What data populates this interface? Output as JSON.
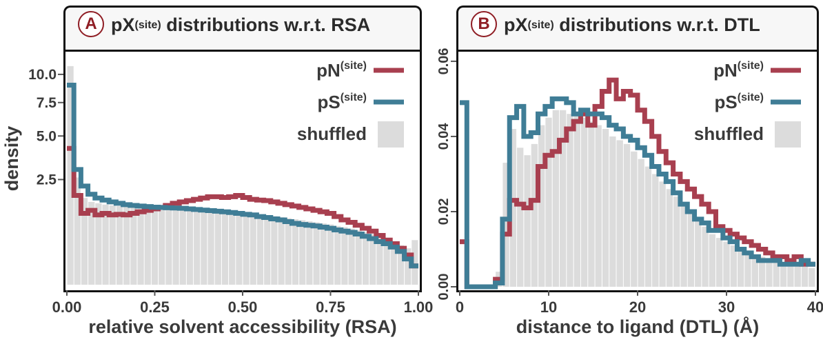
{
  "chart_data": [
    {
      "type": "bar",
      "panel_letter": "A",
      "title_prefix": "pX",
      "title_sup": "(site)",
      "title_suffix": " distributions w.r.t. RSA",
      "xlabel": "relative solvent accessibility (RSA)",
      "ylabel": "density",
      "xlim": [
        0,
        1
      ],
      "yticks": [
        "10.0",
        "7.5",
        "5.0",
        "2.5"
      ],
      "xticks": [
        "0.00",
        "0.25",
        "0.50",
        "0.75",
        "1.00"
      ],
      "legend": [
        {
          "label": "pN",
          "sup": "(site)",
          "color": "#a83f4f"
        },
        {
          "label": "pS",
          "sup": "(site)",
          "color": "#3f7d96"
        },
        {
          "label": "shuffled",
          "sup": "",
          "color": "#dcdcdc"
        }
      ],
      "legend_position": "top-right",
      "bin_edges": [
        0.0,
        0.02,
        0.04,
        0.06,
        0.08,
        0.1,
        0.12,
        0.14,
        0.16,
        0.18,
        0.2,
        0.22,
        0.24,
        0.26,
        0.28,
        0.3,
        0.32,
        0.34,
        0.36,
        0.38,
        0.4,
        0.42,
        0.44,
        0.46,
        0.48,
        0.5,
        0.52,
        0.54,
        0.56,
        0.58,
        0.6,
        0.62,
        0.64,
        0.66,
        0.68,
        0.7,
        0.72,
        0.74,
        0.76,
        0.78,
        0.8,
        0.82,
        0.84,
        0.86,
        0.88,
        0.9,
        0.92,
        0.94,
        0.96,
        0.98,
        1.0
      ],
      "series": [
        {
          "name": "shuffled",
          "color": "#dcdcdc",
          "values": [
            10.8,
            2.6,
            1.7,
            1.55,
            1.5,
            1.45,
            1.42,
            1.4,
            1.38,
            1.37,
            1.36,
            1.35,
            1.34,
            1.33,
            1.32,
            1.31,
            1.3,
            1.28,
            1.26,
            1.25,
            1.24,
            1.22,
            1.2,
            1.18,
            1.16,
            1.14,
            1.12,
            1.1,
            1.08,
            1.06,
            1.03,
            1.0,
            0.97,
            0.94,
            0.91,
            0.88,
            0.85,
            0.82,
            0.78,
            0.75,
            0.71,
            0.67,
            0.63,
            0.58,
            0.53,
            0.48,
            0.42,
            0.35,
            0.3,
            0.45
          ]
        },
        {
          "name": "pN",
          "color": "#a83f4f",
          "values": [
            4.2,
            1.8,
            1.15,
            1.25,
            1.1,
            1.15,
            1.1,
            1.12,
            1.1,
            1.15,
            1.2,
            1.25,
            1.3,
            1.35,
            1.42,
            1.5,
            1.55,
            1.6,
            1.65,
            1.7,
            1.75,
            1.75,
            1.72,
            1.75,
            1.8,
            1.72,
            1.65,
            1.62,
            1.6,
            1.55,
            1.5,
            1.45,
            1.4,
            1.35,
            1.3,
            1.25,
            1.2,
            1.15,
            1.05,
            0.95,
            0.88,
            0.8,
            0.72,
            0.65,
            0.55,
            0.45,
            0.38,
            0.3,
            0.2,
            0.08
          ]
        },
        {
          "name": "pS",
          "color": "#3f7d96",
          "values": [
            9.0,
            3.0,
            2.2,
            1.85,
            1.7,
            1.62,
            1.55,
            1.5,
            1.45,
            1.42,
            1.4,
            1.38,
            1.36,
            1.35,
            1.34,
            1.33,
            1.32,
            1.3,
            1.28,
            1.26,
            1.24,
            1.22,
            1.2,
            1.18,
            1.15,
            1.12,
            1.1,
            1.05,
            1.02,
            0.98,
            0.95,
            0.9,
            0.85,
            0.82,
            0.8,
            0.78,
            0.75,
            0.72,
            0.68,
            0.65,
            0.62,
            0.58,
            0.53,
            0.48,
            0.42,
            0.38,
            0.32,
            0.25,
            0.15,
            0.08
          ]
        }
      ]
    },
    {
      "type": "bar",
      "panel_letter": "B",
      "title_prefix": "pX",
      "title_sup": "(site)",
      "title_suffix": " distributions w.r.t. DTL",
      "xlabel": "distance to ligand (DTL) (Å)",
      "ylabel": "",
      "xlim": [
        0,
        40
      ],
      "ylim": [
        0,
        0.062
      ],
      "yticks": [
        "0.06",
        "0.04",
        "0.02",
        "0.00"
      ],
      "xticks": [
        "0",
        "10",
        "20",
        "30",
        "40"
      ],
      "legend": [
        {
          "label": "pN",
          "sup": "(site)",
          "color": "#a83f4f"
        },
        {
          "label": "pS",
          "sup": "(site)",
          "color": "#3f7d96"
        },
        {
          "label": "shuffled",
          "sup": "",
          "color": "#dcdcdc"
        }
      ],
      "legend_position": "top-right",
      "bin_edges": [
        0,
        0.8,
        1.6,
        2.4,
        3.2,
        4.0,
        4.8,
        5.6,
        6.4,
        7.2,
        8.0,
        8.8,
        9.6,
        10.4,
        11.2,
        12.0,
        12.8,
        13.6,
        14.4,
        15.2,
        16.0,
        16.8,
        17.6,
        18.4,
        19.2,
        20.0,
        20.8,
        21.6,
        22.4,
        23.2,
        24.0,
        24.8,
        25.6,
        26.4,
        27.2,
        28.0,
        28.8,
        29.6,
        30.4,
        31.2,
        32.0,
        32.8,
        33.6,
        34.4,
        35.2,
        36.0,
        36.8,
        37.6,
        38.4,
        39.2,
        40.0
      ],
      "series": [
        {
          "name": "shuffled",
          "color": "#dcdcdc",
          "values": [
            0.0,
            0.0,
            0.0,
            0.0,
            0.0,
            0.004,
            0.033,
            0.042,
            0.037,
            0.035,
            0.038,
            0.043,
            0.045,
            0.047,
            0.047,
            0.046,
            0.046,
            0.045,
            0.044,
            0.043,
            0.042,
            0.04,
            0.039,
            0.038,
            0.036,
            0.034,
            0.032,
            0.03,
            0.028,
            0.026,
            0.024,
            0.022,
            0.02,
            0.018,
            0.016,
            0.014,
            0.013,
            0.012,
            0.011,
            0.01,
            0.009,
            0.008,
            0.008,
            0.007,
            0.007,
            0.006,
            0.006,
            0.006,
            0.006,
            0.005
          ]
        },
        {
          "name": "pN",
          "color": "#a83f4f",
          "values": [
            0.012,
            0.0,
            0.0,
            0.0,
            0.0,
            0.002,
            0.014,
            0.023,
            0.022,
            0.021,
            0.023,
            0.032,
            0.035,
            0.036,
            0.039,
            0.042,
            0.044,
            0.046,
            0.043,
            0.048,
            0.052,
            0.055,
            0.05,
            0.052,
            0.051,
            0.047,
            0.044,
            0.04,
            0.036,
            0.033,
            0.03,
            0.028,
            0.026,
            0.024,
            0.022,
            0.02,
            0.016,
            0.015,
            0.014,
            0.013,
            0.012,
            0.011,
            0.01,
            0.009,
            0.008,
            0.008,
            0.007,
            0.008,
            0.006,
            0.006
          ]
        },
        {
          "name": "pS",
          "color": "#3f7d96",
          "values": [
            0.049,
            0.0,
            0.0,
            0.0,
            0.0,
            0.001,
            0.018,
            0.045,
            0.048,
            0.04,
            0.041,
            0.046,
            0.048,
            0.05,
            0.05,
            0.049,
            0.046,
            0.047,
            0.046,
            0.046,
            0.045,
            0.043,
            0.042,
            0.04,
            0.039,
            0.037,
            0.035,
            0.032,
            0.03,
            0.028,
            0.025,
            0.022,
            0.02,
            0.018,
            0.017,
            0.015,
            0.015,
            0.013,
            0.012,
            0.01,
            0.009,
            0.008,
            0.007,
            0.007,
            0.007,
            0.006,
            0.006,
            0.006,
            0.007,
            0.006
          ]
        }
      ]
    }
  ]
}
